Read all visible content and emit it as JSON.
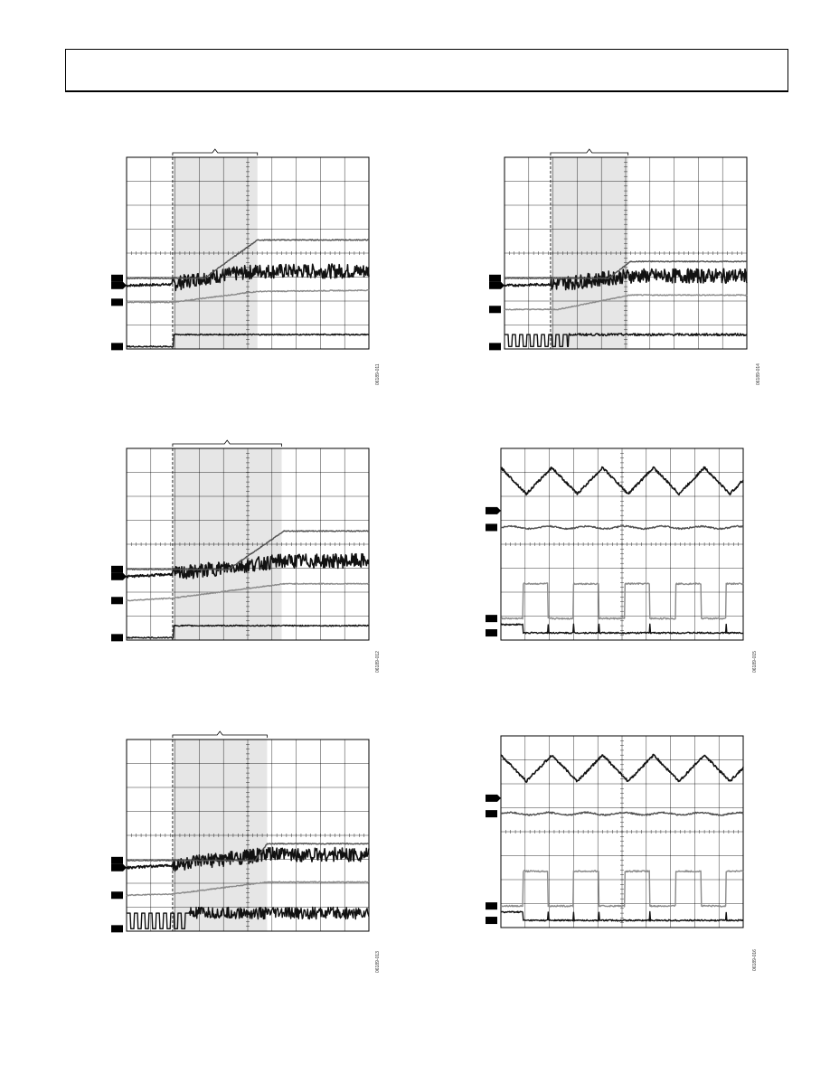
{
  "page": {
    "header": ""
  },
  "chart_data": [
    {
      "id": "scope-1",
      "type": "line",
      "figure_id": "06189-011",
      "window": [
        1.9,
        5.4
      ],
      "traces": [
        {
          "name": "",
          "color": "#111111",
          "kind": "noisy-ramp",
          "x": [
            0,
            1.9,
            3.0,
            5.4,
            10
          ],
          "level": [
            2.65,
            2.7,
            2.95,
            3.25,
            3.25
          ],
          "thick": true
        },
        {
          "name": "",
          "color": "#505050",
          "kind": "line",
          "x": [
            0,
            3.2,
            5.4,
            10
          ],
          "level": [
            2.95,
            2.95,
            4.55,
            4.55
          ],
          "thick": false
        },
        {
          "name": "",
          "color": "#8a8a8a",
          "kind": "line",
          "x": [
            0,
            1.9,
            5.4,
            10
          ],
          "level": [
            1.95,
            1.95,
            2.4,
            2.45
          ],
          "thick": false
        },
        {
          "name": "",
          "color": "#111111",
          "kind": "step",
          "x": [
            0,
            1.95,
            10
          ],
          "level": [
            0.1,
            0.6,
            0.6
          ],
          "thick": false
        }
      ]
    },
    {
      "id": "scope-2",
      "type": "line",
      "figure_id": "06189-014",
      "window": [
        1.9,
        5.1
      ],
      "traces": [
        {
          "name": "",
          "color": "#111111",
          "kind": "noisy-ramp",
          "x": [
            0,
            1.9,
            3.0,
            5.1,
            10
          ],
          "level": [
            2.65,
            2.7,
            2.8,
            3.05,
            3.05
          ],
          "thick": true
        },
        {
          "name": "",
          "color": "#505050",
          "kind": "line",
          "x": [
            0,
            4.3,
            5.2,
            10
          ],
          "level": [
            2.95,
            2.95,
            3.65,
            3.65
          ],
          "thick": false
        },
        {
          "name": "",
          "color": "#8a8a8a",
          "kind": "line",
          "x": [
            0,
            2.2,
            5.2,
            10
          ],
          "level": [
            1.65,
            1.65,
            2.25,
            2.25
          ],
          "thick": false
        },
        {
          "name": "",
          "color": "#111111",
          "kind": "pulses-then-high",
          "x": [
            0,
            2.65,
            10
          ],
          "level": [
            0.1,
            0.6,
            0.6
          ],
          "thick": false
        }
      ]
    },
    {
      "id": "scope-3",
      "type": "line",
      "figure_id": "06189-012",
      "window": [
        1.9,
        6.4
      ],
      "traces": [
        {
          "name": "",
          "color": "#111111",
          "kind": "noisy-ramp",
          "x": [
            0,
            1.9,
            3.5,
            6.4,
            10
          ],
          "level": [
            2.65,
            2.75,
            2.95,
            3.3,
            3.3
          ],
          "thick": true
        },
        {
          "name": "",
          "color": "#505050",
          "kind": "line",
          "x": [
            0,
            4.2,
            6.5,
            10
          ],
          "level": [
            2.95,
            2.95,
            4.55,
            4.55
          ],
          "thick": false
        },
        {
          "name": "",
          "color": "#8a8a8a",
          "kind": "line",
          "x": [
            0,
            1.9,
            6.5,
            10
          ],
          "level": [
            1.65,
            1.75,
            2.35,
            2.35
          ],
          "thick": false
        },
        {
          "name": "",
          "color": "#111111",
          "kind": "step",
          "x": [
            0,
            1.95,
            10
          ],
          "level": [
            0.1,
            0.6,
            0.6
          ],
          "thick": false
        }
      ]
    },
    {
      "id": "scope-4",
      "type": "line",
      "figure_id": "06189-015",
      "window": null,
      "traces": [
        {
          "name": "",
          "color": "#111111",
          "kind": "triangle",
          "period": 2.1,
          "level": [
            6.1,
            7.2
          ],
          "thick": true
        },
        {
          "name": "",
          "color": "#505050",
          "kind": "flat-noisy",
          "level": [
            4.7,
            4.7
          ],
          "thick": false
        },
        {
          "name": "",
          "color": "#8a8a8a",
          "kind": "square",
          "period": 2.1,
          "level": [
            0.9,
            2.35
          ],
          "thick": false
        },
        {
          "name": "",
          "color": "#111111",
          "kind": "spiky-flat",
          "period": 2.1,
          "level": [
            0.3,
            0.3
          ],
          "thick": false
        }
      ]
    },
    {
      "id": "scope-5",
      "type": "line",
      "figure_id": "06189-013",
      "window": [
        1.9,
        5.8
      ],
      "traces": [
        {
          "name": "",
          "color": "#111111",
          "kind": "noisy-ramp",
          "x": [
            0,
            1.9,
            3.5,
            5.8,
            10
          ],
          "level": [
            2.65,
            2.75,
            2.95,
            3.2,
            3.2
          ],
          "thick": true
        },
        {
          "name": "",
          "color": "#505050",
          "kind": "line",
          "x": [
            0,
            5.3,
            5.8,
            10
          ],
          "level": [
            2.95,
            2.95,
            3.65,
            3.65
          ],
          "thick": false
        },
        {
          "name": "",
          "color": "#8a8a8a",
          "kind": "line",
          "x": [
            0,
            1.9,
            5.8,
            10
          ],
          "level": [
            1.5,
            1.55,
            2.05,
            2.05
          ],
          "thick": false
        },
        {
          "name": "",
          "color": "#111111",
          "kind": "pulses-then-dense",
          "x": [
            0,
            2.6,
            10
          ],
          "level": [
            0.1,
            0.75,
            0.75
          ],
          "thick": false
        }
      ]
    },
    {
      "id": "scope-6",
      "type": "line",
      "figure_id": "06189-016",
      "window": null,
      "traces": [
        {
          "name": "",
          "color": "#111111",
          "kind": "triangle",
          "period": 2.1,
          "level": [
            6.1,
            7.2
          ],
          "thick": true
        },
        {
          "name": "",
          "color": "#505050",
          "kind": "flat-noisy",
          "level": [
            4.75,
            4.75
          ],
          "thick": false
        },
        {
          "name": "",
          "color": "#8a8a8a",
          "kind": "square",
          "period": 2.1,
          "level": [
            0.9,
            2.35
          ],
          "thick": false
        },
        {
          "name": "",
          "color": "#111111",
          "kind": "spiky-flat",
          "period": 2.1,
          "level": [
            0.3,
            0.3
          ],
          "thick": false
        }
      ]
    }
  ]
}
